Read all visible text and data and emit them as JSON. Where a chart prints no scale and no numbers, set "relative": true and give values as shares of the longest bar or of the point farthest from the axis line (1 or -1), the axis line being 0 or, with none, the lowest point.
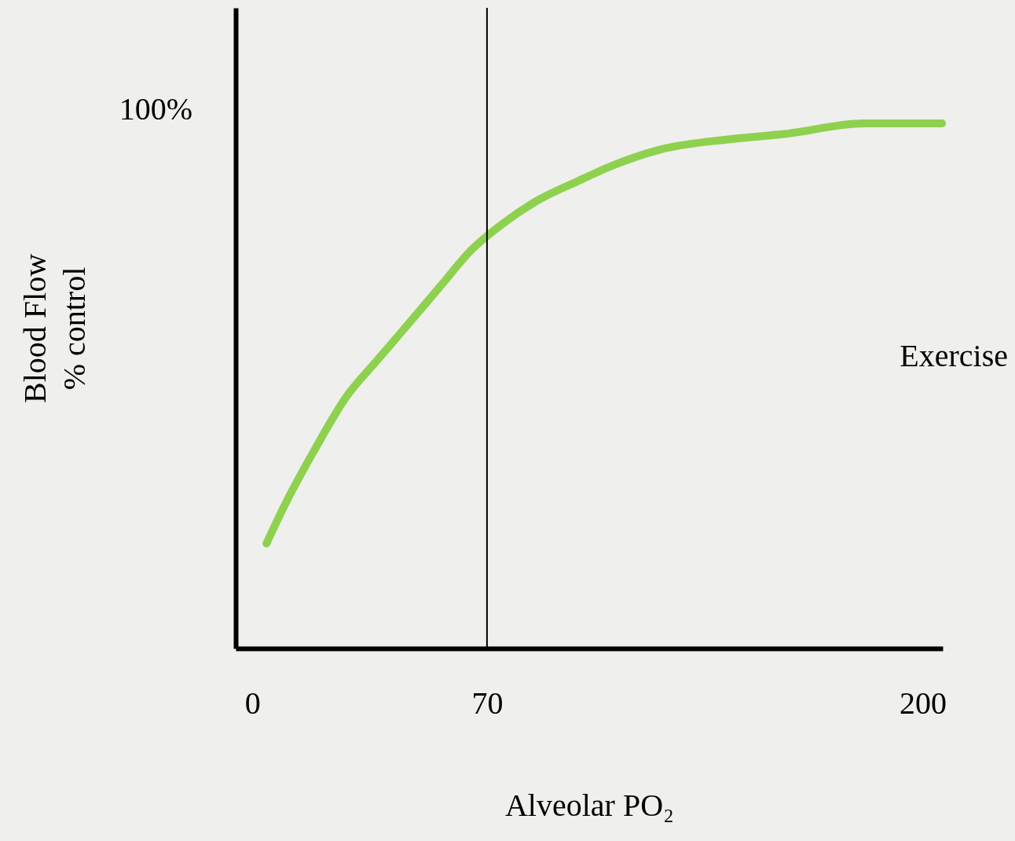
{
  "chart_data": {
    "type": "line",
    "relative": true,
    "xlabel": "Alveolar PO₂",
    "ylabel": "Blood Flow\n% control",
    "x": [
      4.2,
      9.4,
      18.7,
      28.1,
      37.4,
      46.8,
      56.1,
      65.5,
      74.9,
      84.2,
      97.1,
      107.6,
      121.6,
      142.7,
      159.1,
      182.5,
      205.8
    ],
    "series": [
      {
        "color": "#8ed14f",
        "values": [
          0.2,
          0.27,
          0.38,
          0.48,
          0.55,
          0.62,
          0.69,
          0.76,
          0.81,
          0.85,
          0.89,
          0.92,
          0.95,
          0.97,
          0.98,
          1,
          1
        ]
      }
    ],
    "xlim": [
      -5,
      206
    ],
    "xticks": [
      0,
      70,
      200
    ],
    "ref_lines": [
      {
        "axis": "x",
        "value": 70,
        "color": "#000000"
      }
    ],
    "annotations": [
      "100%",
      "Exercise"
    ],
    "line_style": "solid"
  }
}
